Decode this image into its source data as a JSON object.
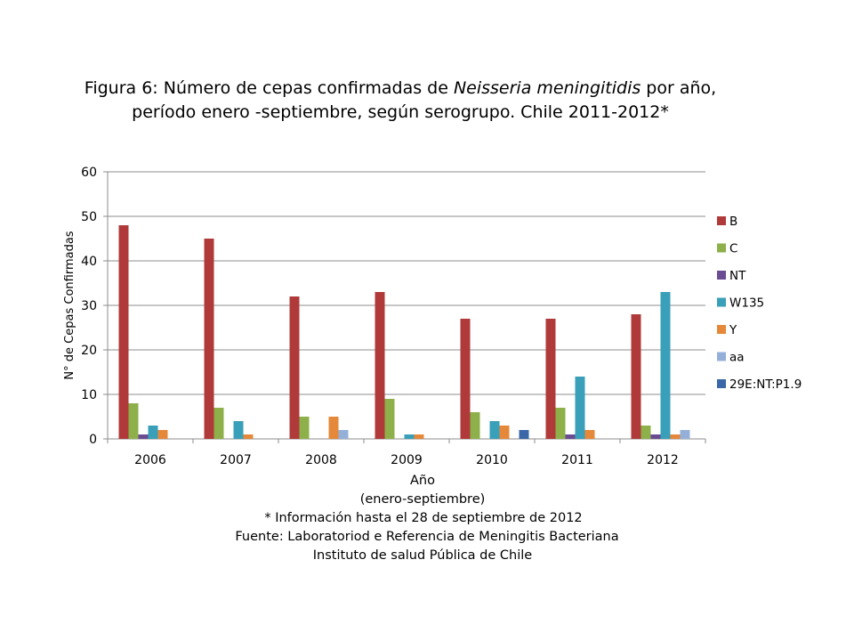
{
  "title": {
    "line1_prefix": "Figura 6: Número de cepas confirmadas de ",
    "line1_italic": "Neisseria meningitidis",
    "line1_suffix": " por año,",
    "line2": "período enero -septiembre, según serogrupo. Chile 2011-2012*"
  },
  "colors": {
    "B": "#b03a3a",
    "C": "#8db04a",
    "NT": "#6b4c93",
    "W135": "#3a9fb8",
    "Y": "#e5883a",
    "aa": "#95b0d8",
    "29E:NT:P1.9": "#3a67a8"
  },
  "chart_data": {
    "type": "bar",
    "categories": [
      "2006",
      "2007",
      "2008",
      "2009",
      "2010",
      "2011",
      "2012"
    ],
    "ylabel": "N° de Cepas Confirmadas",
    "xlabel": "Año",
    "xlabel_sub": "(enero-septiembre)",
    "ylim": [
      0,
      60
    ],
    "yticks": [
      0,
      10,
      20,
      30,
      40,
      50,
      60
    ],
    "grid": true,
    "legend": "right",
    "series": [
      {
        "name": "B",
        "values": [
          48,
          45,
          32,
          33,
          27,
          27,
          28
        ]
      },
      {
        "name": "C",
        "values": [
          8,
          7,
          5,
          9,
          6,
          7,
          3
        ]
      },
      {
        "name": "NT",
        "values": [
          1,
          0,
          0,
          0,
          0,
          1,
          1
        ]
      },
      {
        "name": "W135",
        "values": [
          3,
          4,
          0,
          1,
          4,
          14,
          33
        ]
      },
      {
        "name": "Y",
        "values": [
          2,
          1,
          5,
          1,
          3,
          2,
          1
        ]
      },
      {
        "name": "aa",
        "values": [
          0,
          0,
          2,
          0,
          0,
          0,
          2
        ]
      },
      {
        "name": "29E:NT:P1.9",
        "values": [
          0,
          0,
          0,
          0,
          2,
          0,
          0
        ]
      }
    ]
  },
  "footer": {
    "note": "* Información hasta el 28 de septiembre de 2012",
    "source1": "Fuente: Laboratoriod e Referencia de Meningitis Bacteriana",
    "source2": "Instituto de salud Pública de Chile"
  }
}
